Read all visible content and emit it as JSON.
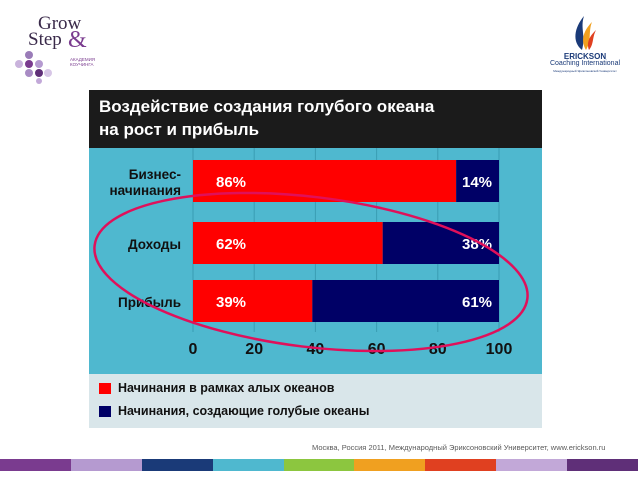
{
  "logo_left": {
    "line1": "Grow",
    "line2": "Step",
    "amp": "&",
    "subtitle": "АКАДЕМИЯ КОУЧИНГА"
  },
  "logo_right": {
    "name": "ERICKSON",
    "subtitle": "Coaching International",
    "tiny": "Международный Эриксоновский Университет"
  },
  "chart_data": {
    "type": "bar",
    "orientation": "horizontal",
    "stacked": true,
    "title": "Воздействие создания голубого океана\nна рост и прибыль",
    "categories": [
      "Бизнес-\nначинания",
      "Доходы",
      "Прибыль"
    ],
    "series": [
      {
        "name": "Начинания в рамках алых океанов",
        "values": [
          86,
          62,
          39
        ],
        "labels": [
          "86%",
          "62%",
          "39%"
        ],
        "color": "#ff0000"
      },
      {
        "name": "Начинания, создающие голубые океаны",
        "values": [
          14,
          38,
          61
        ],
        "labels": [
          "14%",
          "38%",
          "61%"
        ],
        "color": "#000066"
      }
    ],
    "xlim": [
      0,
      100
    ],
    "xticks": [
      "0",
      "20",
      "40",
      "60",
      "80",
      "100"
    ],
    "grid": true,
    "annotation": "red ellipse circling Доходы and Прибыль bars"
  },
  "footer": {
    "text": "Москва, Россия 2011, Международный Эриксоновский Университет, www.erickson.ru"
  },
  "colors": {
    "panel": "#4fb8cf",
    "header": "#1b1b1b",
    "red": "#ff0000",
    "navy": "#000066",
    "highlight": "#e0105a"
  }
}
